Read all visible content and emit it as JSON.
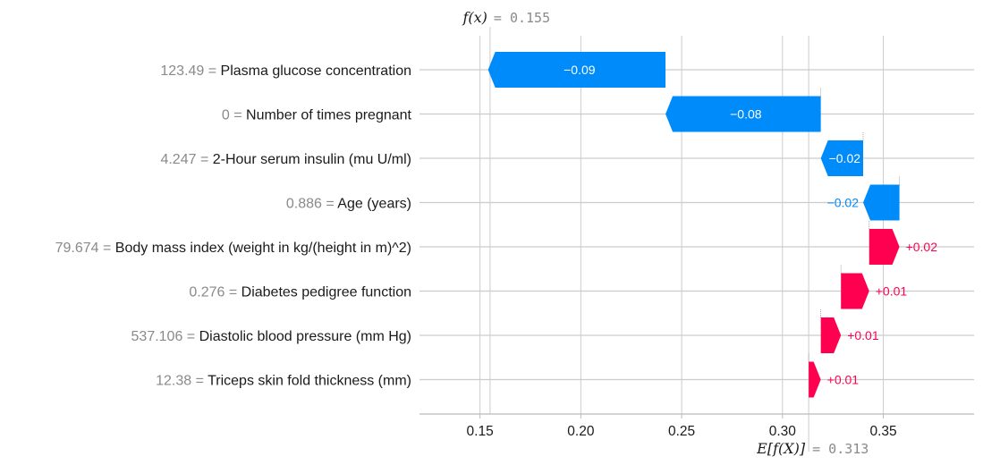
{
  "chart_data": {
    "type": "waterfall",
    "base_value": 0.313,
    "output_value": 0.155,
    "fx_label_math": "f(x)",
    "fx_value_text": "= 0.155",
    "efx_label_math": "E[f(X)]",
    "efx_value_text": "= 0.313",
    "xlim": [
      0.12,
      0.395
    ],
    "x_ticks": [
      0.15,
      0.2,
      0.25,
      0.3,
      0.35
    ],
    "x_tick_labels": [
      "0.15",
      "0.20",
      "0.25",
      "0.30",
      "0.35"
    ],
    "features": [
      {
        "value_text": "123.49 =",
        "name": "Plasma glucose concentration",
        "contribution": -0.088,
        "label": "−0.09"
      },
      {
        "value_text": "0 =",
        "name": "Number of times pregnant",
        "contribution": -0.077,
        "label": "−0.08"
      },
      {
        "value_text": "4.247 =",
        "name": "2-Hour serum insulin (mu U/ml)",
        "contribution": -0.021,
        "label": "−0.02"
      },
      {
        "value_text": "0.886 =",
        "name": "Age (years)",
        "contribution": -0.018,
        "label": "−0.02"
      },
      {
        "value_text": "79.674 =",
        "name": "Body mass index (weight in kg/(height in m)^2)",
        "contribution": 0.015,
        "label": "+0.02"
      },
      {
        "value_text": "0.276 =",
        "name": "Diabetes pedigree function",
        "contribution": 0.014,
        "label": "+0.01"
      },
      {
        "value_text": "537.106 =",
        "name": "Diastolic blood pressure (mm Hg)",
        "contribution": 0.01,
        "label": "+0.01"
      },
      {
        "value_text": "12.38 =",
        "name": "Triceps skin fold thickness (mm)",
        "contribution": 0.006,
        "label": "+0.01"
      }
    ],
    "colors": {
      "negative": "#008bfb",
      "positive": "#ff0051",
      "grid": "#cccccc",
      "axis": "#bbbbbb"
    }
  }
}
